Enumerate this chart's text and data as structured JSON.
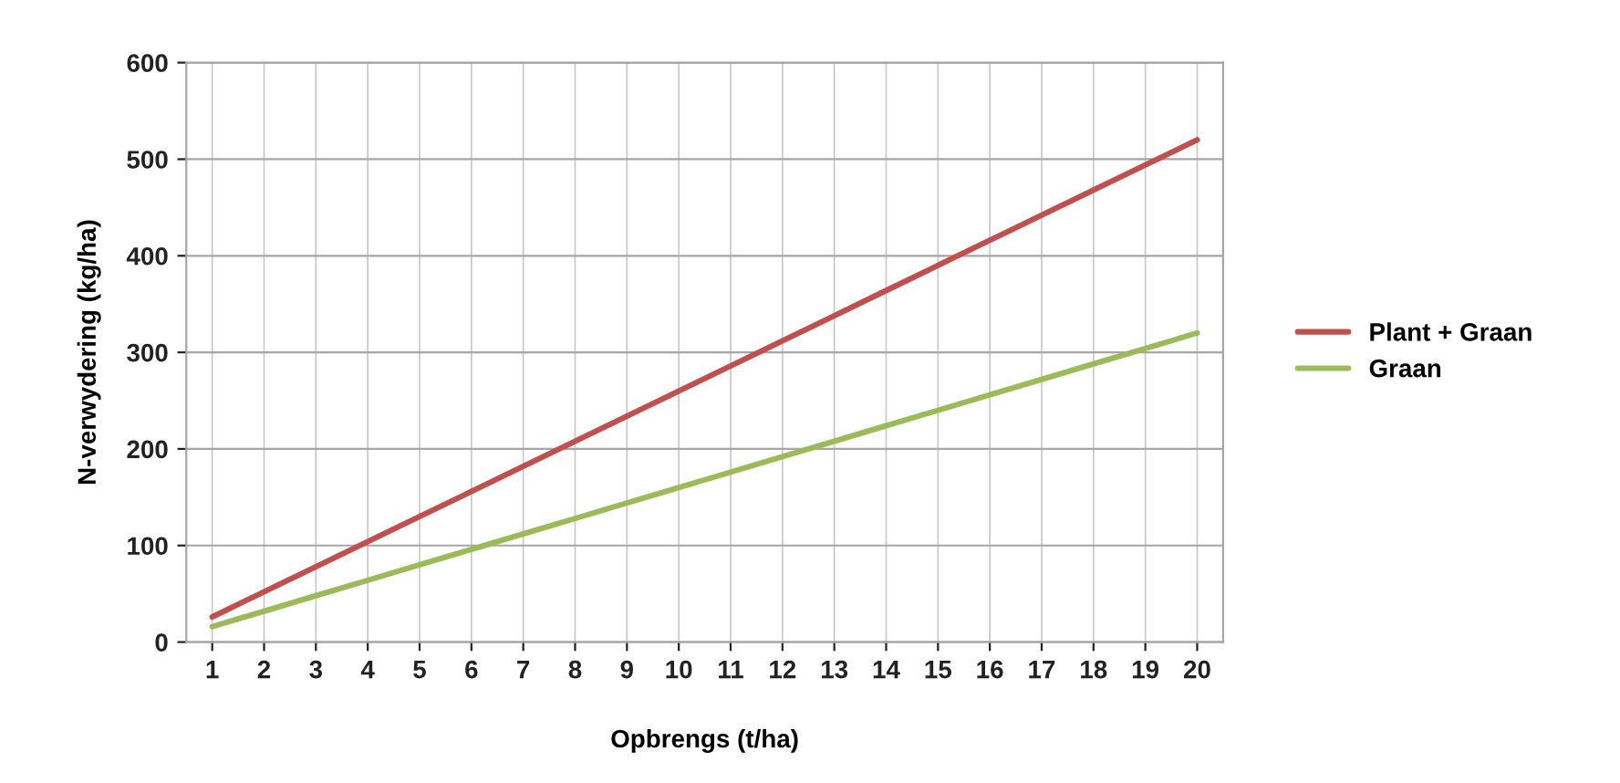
{
  "chart_data": {
    "type": "line",
    "xlabel": "Opbrengs (t/ha)",
    "ylabel": "N-verwydering (kg/ha)",
    "categories": [
      "1",
      "2",
      "3",
      "4",
      "5",
      "6",
      "7",
      "8",
      "9",
      "10",
      "11",
      "12",
      "13",
      "14",
      "15",
      "16",
      "17",
      "18",
      "19",
      "20"
    ],
    "series": [
      {
        "name": "Plant + Graan",
        "color": "#c0504d",
        "values": [
          26,
          52,
          78,
          104,
          130,
          156,
          182,
          208,
          234,
          260,
          286,
          312,
          338,
          364,
          390,
          416,
          442,
          468,
          494,
          520
        ]
      },
      {
        "name": "Graan",
        "color": "#9bbb59",
        "values": [
          16,
          32,
          48,
          64,
          80,
          96,
          112,
          128,
          144,
          160,
          176,
          192,
          208,
          224,
          240,
          256,
          272,
          288,
          304,
          320
        ]
      }
    ],
    "ylim": [
      0,
      600
    ],
    "yticks": [
      0,
      100,
      200,
      300,
      400,
      500,
      600
    ],
    "grid": true,
    "legend": "right",
    "marker": "none",
    "line_style": "solid"
  }
}
